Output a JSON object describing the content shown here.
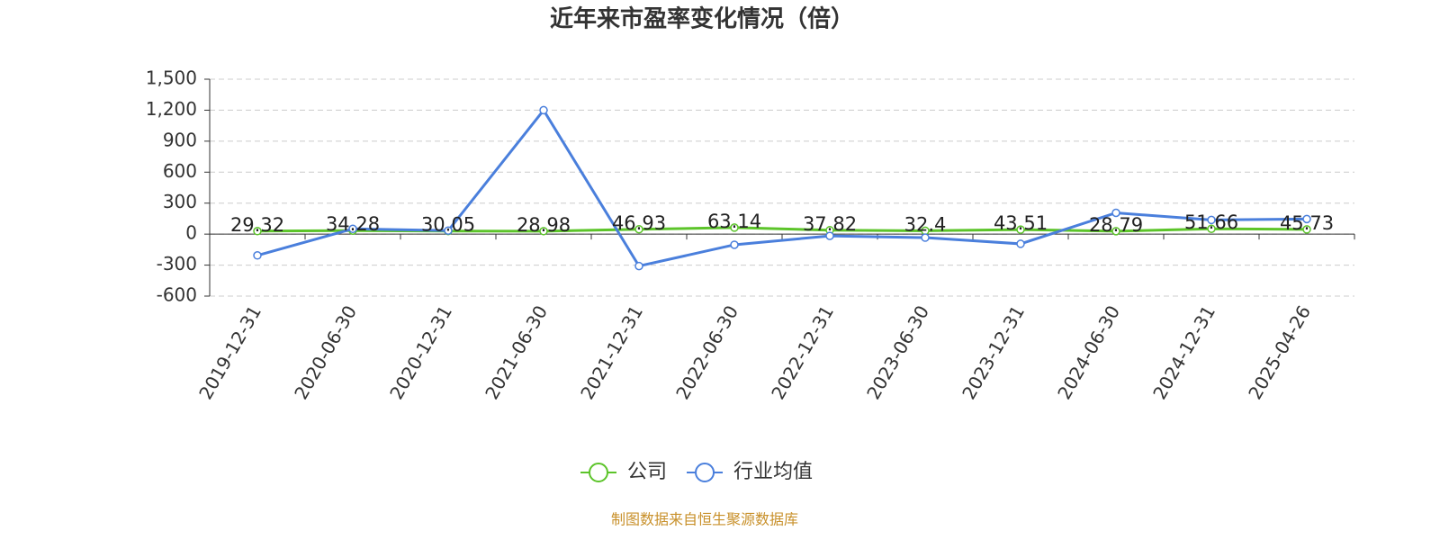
{
  "chart_data": {
    "type": "line",
    "title": "近年来市盈率变化情况（倍）",
    "categories": [
      "2019-12-31",
      "2020-06-30",
      "2020-12-31",
      "2021-06-30",
      "2021-12-31",
      "2022-06-30",
      "2022-12-31",
      "2023-06-30",
      "2023-12-31",
      "2024-06-30",
      "2024-12-31",
      "2025-04-26"
    ],
    "series": [
      {
        "name": "公司",
        "color": "#5cc42a",
        "values": [
          29.32,
          34.28,
          30.05,
          28.98,
          46.93,
          63.14,
          37.82,
          32.4,
          43.51,
          28.79,
          51.66,
          45.73
        ]
      },
      {
        "name": "行业均值",
        "color": "#4a7fdc",
        "values": [
          -206,
          51,
          34,
          1200,
          -309,
          -103,
          -17,
          -34,
          -94,
          206,
          137,
          146
        ]
      }
    ],
    "ylim": [
      -600,
      1500
    ],
    "yticks": [
      -600,
      -300,
      0,
      300,
      600,
      900,
      {
        "value": 1200,
        "label": "1,200"
      },
      {
        "value": 1500,
        "label": "1,500"
      }
    ],
    "grid": true,
    "source": "制图数据来自恒生聚源数据库"
  }
}
